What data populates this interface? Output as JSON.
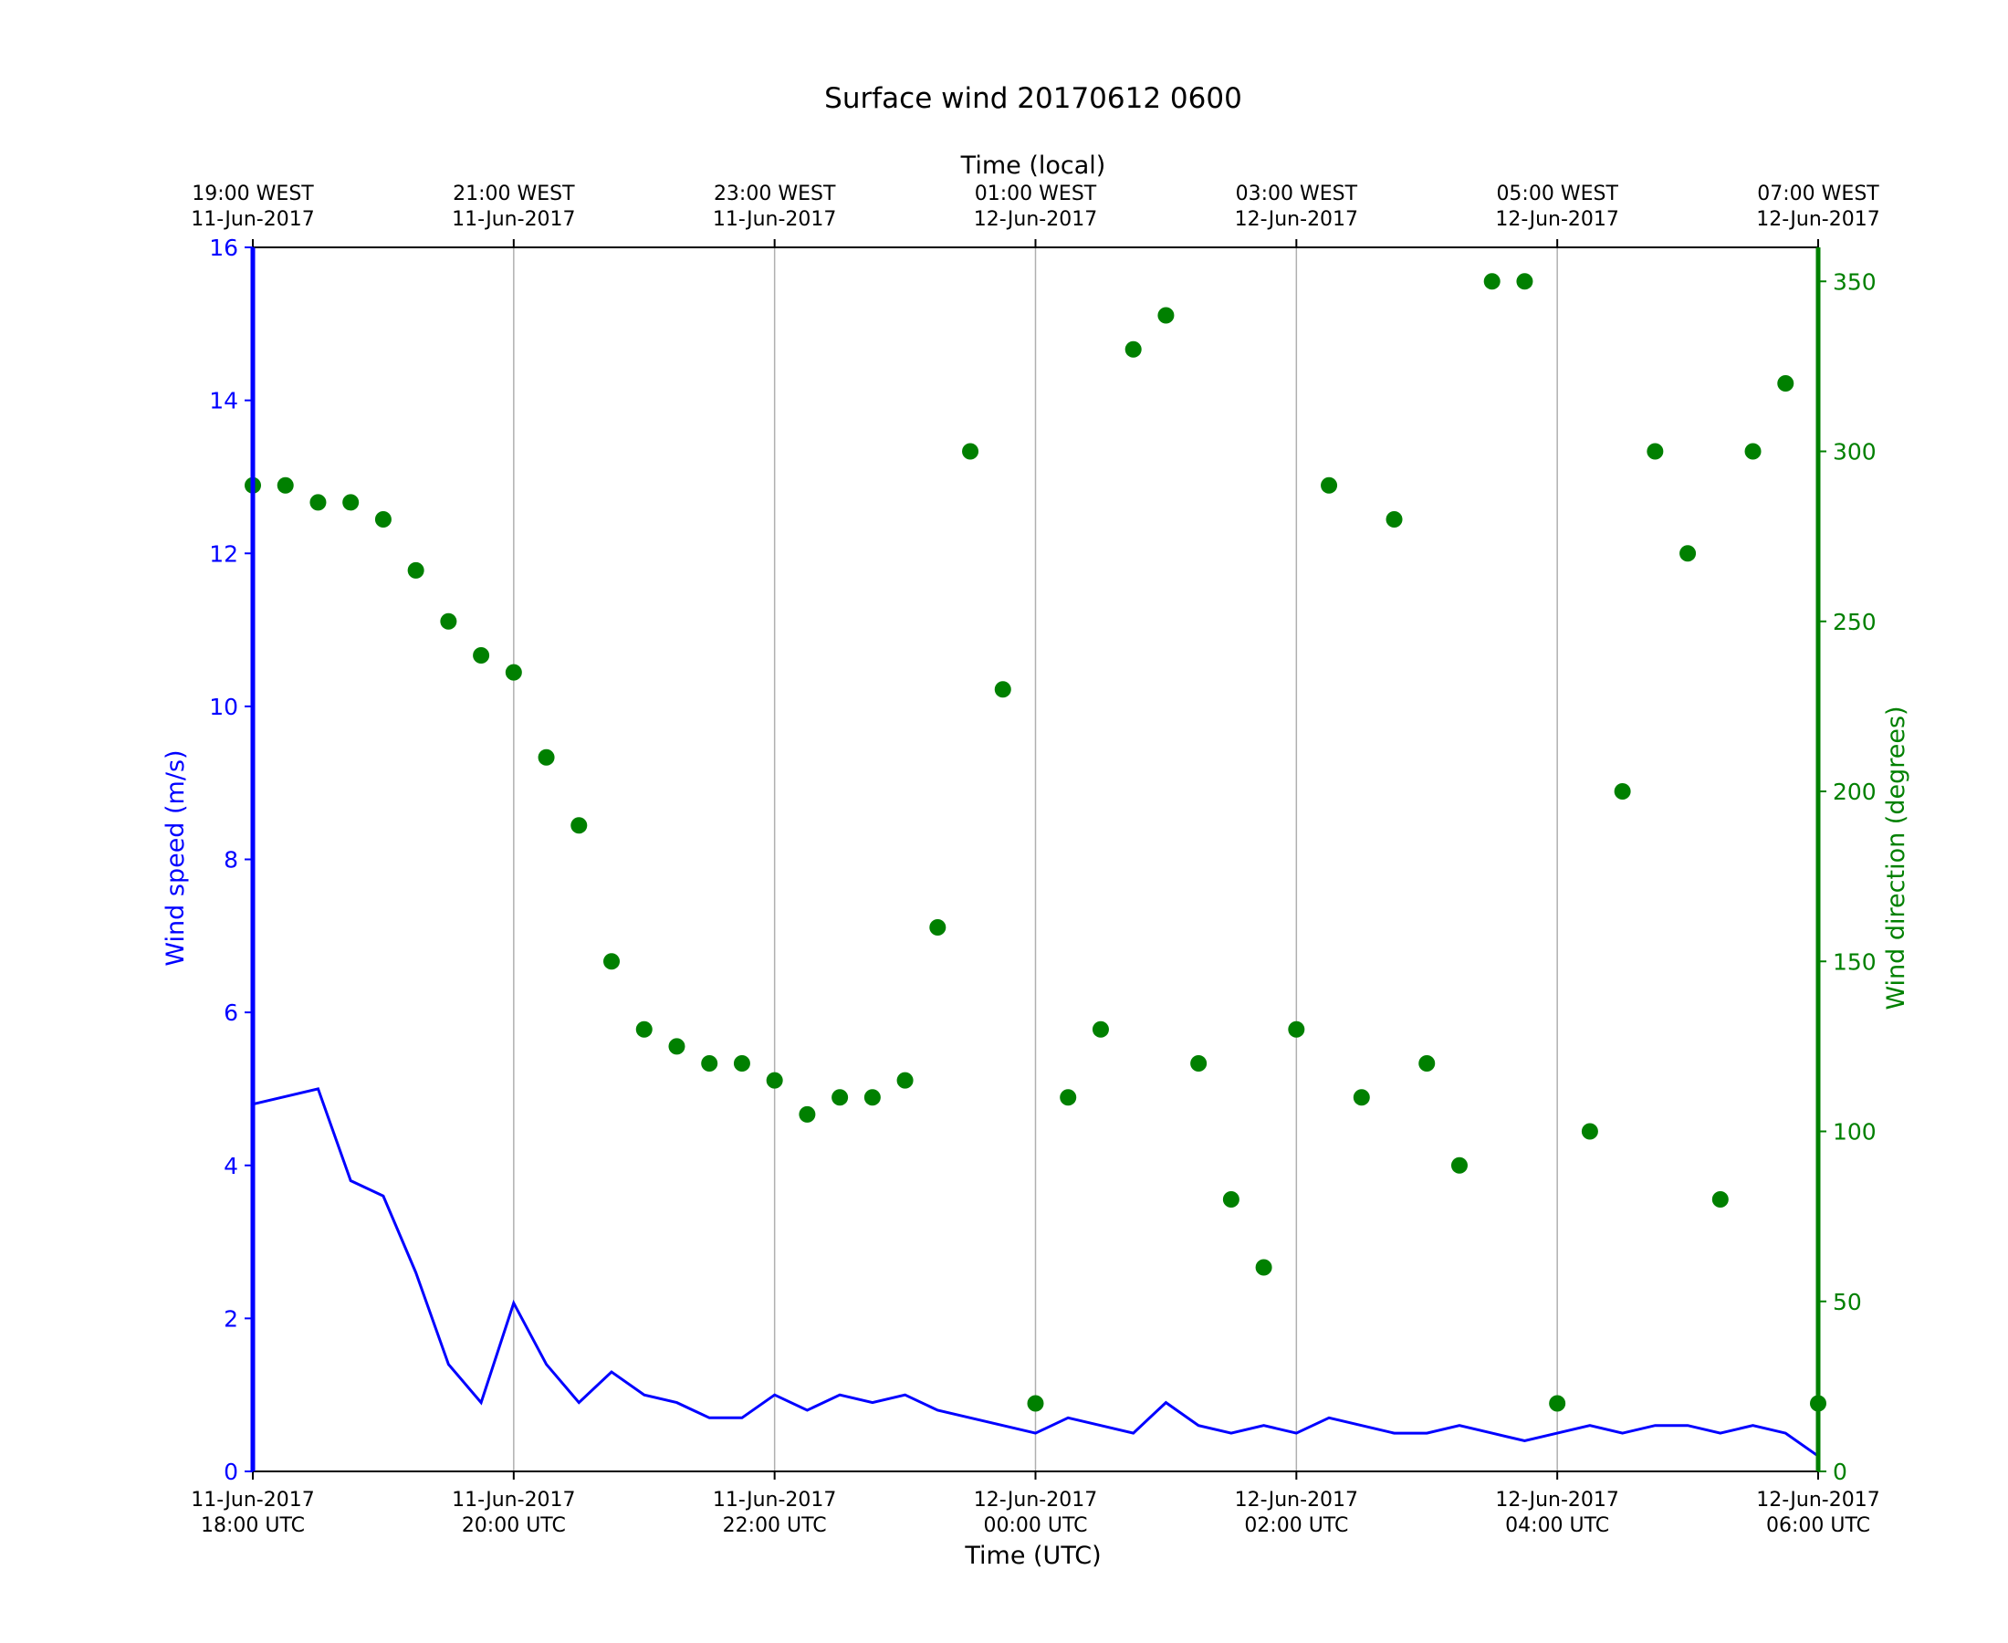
{
  "chart_data": {
    "type": "scatter",
    "title": "Surface wind 20170612 0600",
    "xlabel_bottom": "Time (UTC)",
    "xlabel_top": "Time (local)",
    "ylabel_left": "Wind speed (m/s)",
    "ylabel_right": "Wind direction (degrees)",
    "xlim_hours_utc": [
      "2017-06-11 18:00 UTC",
      "2017-06-12 06:00 UTC"
    ],
    "ylim_left": [
      0,
      16
    ],
    "ylim_right": [
      0,
      360
    ],
    "colors": {
      "speed": "#0000ff",
      "direction": "#008000",
      "grid": "#b0b0b0",
      "axis": "#000000"
    },
    "bottom_ticks": [
      {
        "line1": "11-Jun-2017",
        "line2": "18:00 UTC"
      },
      {
        "line1": "11-Jun-2017",
        "line2": "20:00 UTC"
      },
      {
        "line1": "11-Jun-2017",
        "line2": "22:00 UTC"
      },
      {
        "line1": "12-Jun-2017",
        "line2": "00:00 UTC"
      },
      {
        "line1": "12-Jun-2017",
        "line2": "02:00 UTC"
      },
      {
        "line1": "12-Jun-2017",
        "line2": "04:00 UTC"
      },
      {
        "line1": "12-Jun-2017",
        "line2": "06:00 UTC"
      }
    ],
    "top_ticks": [
      {
        "line1": "19:00 WEST",
        "line2": "11-Jun-2017"
      },
      {
        "line1": "21:00 WEST",
        "line2": "11-Jun-2017"
      },
      {
        "line1": "23:00 WEST",
        "line2": "11-Jun-2017"
      },
      {
        "line1": "01:00 WEST",
        "line2": "12-Jun-2017"
      },
      {
        "line1": "03:00 WEST",
        "line2": "12-Jun-2017"
      },
      {
        "line1": "05:00 WEST",
        "line2": "12-Jun-2017"
      },
      {
        "line1": "07:00 WEST",
        "line2": "12-Jun-2017"
      }
    ],
    "left_ticks": [
      "0",
      "2",
      "4",
      "6",
      "8",
      "10",
      "12",
      "14",
      "16"
    ],
    "right_ticks": [
      "0",
      "50",
      "100",
      "150",
      "200",
      "250",
      "300",
      "350"
    ],
    "series": [
      {
        "name": "Wind speed (m/s)",
        "kind": "line",
        "x_hours": [
          0.0,
          0.25,
          0.5,
          0.75,
          1.0,
          1.25,
          1.5,
          1.75,
          2.0,
          2.25,
          2.5,
          2.75,
          3.0,
          3.25,
          3.5,
          3.75,
          4.0,
          4.25,
          4.5,
          4.75,
          5.0,
          5.25,
          5.5,
          5.75,
          6.0,
          6.25,
          6.5,
          6.75,
          7.0,
          7.25,
          7.5,
          7.75,
          8.0,
          8.25,
          8.5,
          8.75,
          9.0,
          9.25,
          9.5,
          9.75,
          10.0,
          10.25,
          10.5,
          10.75,
          11.0,
          11.25,
          11.5,
          11.75,
          12.0
        ],
        "y": [
          4.8,
          4.9,
          5.0,
          3.8,
          3.6,
          2.6,
          1.4,
          0.9,
          2.2,
          1.4,
          0.9,
          1.3,
          1.0,
          0.9,
          0.7,
          0.7,
          1.0,
          0.8,
          1.0,
          0.9,
          1.0,
          0.8,
          0.7,
          0.6,
          0.5,
          0.7,
          0.6,
          0.5,
          0.9,
          0.6,
          0.5,
          0.6,
          0.5,
          0.7,
          0.6,
          0.5,
          0.5,
          0.6,
          0.5,
          0.4,
          0.5,
          0.6,
          0.5,
          0.6,
          0.6,
          0.5,
          0.6,
          0.5,
          0.2
        ]
      },
      {
        "name": "Wind direction (degrees)",
        "kind": "scatter",
        "x_hours": [
          0.0,
          0.25,
          0.5,
          0.75,
          1.0,
          1.25,
          1.5,
          1.75,
          2.0,
          2.25,
          2.5,
          2.75,
          3.0,
          3.25,
          3.5,
          3.75,
          4.0,
          4.25,
          4.5,
          4.75,
          5.0,
          5.25,
          5.5,
          5.75,
          6.0,
          6.25,
          6.5,
          6.75,
          7.0,
          7.25,
          7.5,
          7.75,
          8.0,
          8.25,
          8.5,
          8.75,
          9.0,
          9.25,
          9.5,
          9.75,
          10.0,
          10.25,
          10.5,
          10.75,
          11.0,
          11.25,
          11.5,
          11.75,
          12.0
        ],
        "y": [
          290,
          290,
          285,
          285,
          280,
          265,
          250,
          240,
          235,
          210,
          190,
          150,
          130,
          125,
          120,
          120,
          115,
          105,
          110,
          110,
          115,
          160,
          300,
          230,
          20,
          110,
          130,
          330,
          340,
          120,
          80,
          60,
          130,
          290,
          110,
          280,
          120,
          90,
          350,
          350,
          20,
          100,
          200,
          300,
          270,
          80,
          300,
          320,
          20
        ]
      }
    ]
  }
}
